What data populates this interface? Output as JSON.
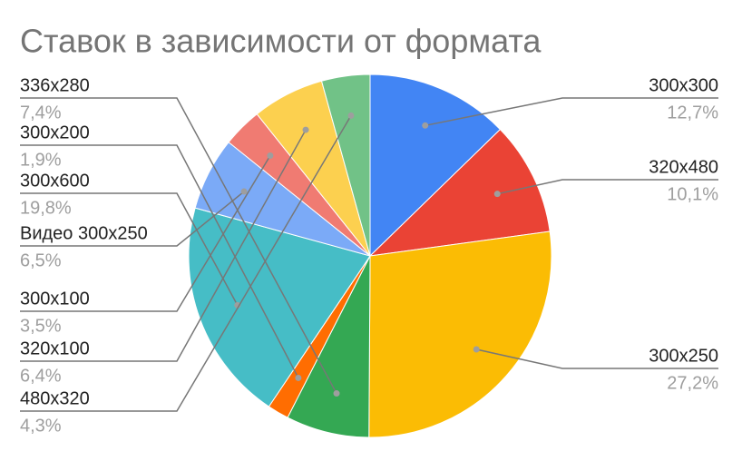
{
  "chart_data": {
    "type": "pie",
    "title": "Ставок в зависимости от формата",
    "categories": [
      "300x300",
      "320x480",
      "300x250",
      "336x280",
      "300x200",
      "300x600",
      "Видео 300x250",
      "300x100",
      "320x100",
      "480x320"
    ],
    "values": [
      12.7,
      10.1,
      27.2,
      7.4,
      1.9,
      19.8,
      6.5,
      3.5,
      6.4,
      4.3
    ],
    "value_labels": [
      "12,7%",
      "10,1%",
      "27,2%",
      "7,4%",
      "1,9%",
      "19,8%",
      "6,5%",
      "3,5%",
      "6,4%",
      "4,3%"
    ],
    "colors": [
      "#4285f4",
      "#ea4335",
      "#fbbc04",
      "#34a853",
      "#ff6d01",
      "#46bdc6",
      "#7baaf7",
      "#f07b72",
      "#fcd04f",
      "#71c287"
    ]
  }
}
